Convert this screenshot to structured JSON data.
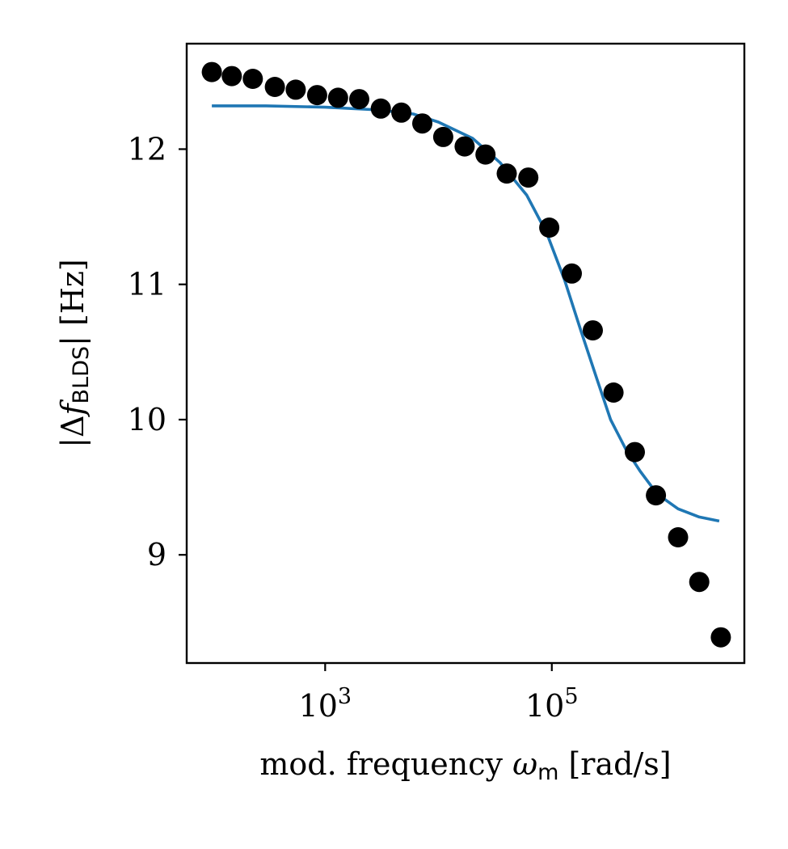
{
  "chart_data": {
    "type": "scatter",
    "xscale": "log",
    "xlim": [
      60,
      5000000
    ],
    "ylim": [
      8.2,
      12.78
    ],
    "grid": false,
    "xlabel": {
      "main": "mod. frequency ",
      "symbol": "ω",
      "subscript": "m",
      "unit": " [rad/s]"
    },
    "ylabel": {
      "prefix": "|Δ",
      "symbol": "f",
      "subscript": "BLDS",
      "suffix": "| [Hz]"
    },
    "xticks": [
      {
        "value": 1000,
        "base": "10",
        "exp": "3"
      },
      {
        "value": 100000,
        "base": "10",
        "exp": "5"
      }
    ],
    "yticks": [
      {
        "value": 9,
        "label": "9"
      },
      {
        "value": 10,
        "label": "10"
      },
      {
        "value": 11,
        "label": "11"
      },
      {
        "value": 12,
        "label": "12"
      }
    ],
    "series": [
      {
        "kind": "scatter",
        "color": "#000000",
        "points": [
          [
            100,
            12.57
          ],
          [
            150,
            12.54
          ],
          [
            230,
            12.52
          ],
          [
            360,
            12.46
          ],
          [
            550,
            12.44
          ],
          [
            850,
            12.4
          ],
          [
            1300,
            12.38
          ],
          [
            2000,
            12.37
          ],
          [
            3100,
            12.3
          ],
          [
            4700,
            12.27
          ],
          [
            7200,
            12.19
          ],
          [
            11000,
            12.09
          ],
          [
            17000,
            12.02
          ],
          [
            26000,
            11.96
          ],
          [
            40000,
            11.82
          ],
          [
            62000,
            11.79
          ],
          [
            95000,
            11.42
          ],
          [
            150000,
            11.08
          ],
          [
            230000,
            10.66
          ],
          [
            350000,
            10.2
          ],
          [
            540000,
            9.76
          ],
          [
            830000,
            9.44
          ],
          [
            1300000,
            9.13
          ],
          [
            2000000,
            8.8
          ],
          [
            3100000,
            8.39
          ]
        ]
      },
      {
        "kind": "line",
        "color": "#1f77b4",
        "points": [
          [
            100,
            12.32
          ],
          [
            300,
            12.32
          ],
          [
            1000,
            12.31
          ],
          [
            3000,
            12.29
          ],
          [
            6000,
            12.26
          ],
          [
            10000,
            12.2
          ],
          [
            20000,
            12.08
          ],
          [
            35000,
            11.9
          ],
          [
            60000,
            11.66
          ],
          [
            90000,
            11.38
          ],
          [
            130000,
            11.03
          ],
          [
            180000,
            10.66
          ],
          [
            250000,
            10.3
          ],
          [
            330000,
            10.0
          ],
          [
            450000,
            9.78
          ],
          [
            600000,
            9.62
          ],
          [
            850000,
            9.45
          ],
          [
            1300000,
            9.34
          ],
          [
            2000000,
            9.28
          ],
          [
            3000000,
            9.25
          ]
        ]
      }
    ]
  }
}
